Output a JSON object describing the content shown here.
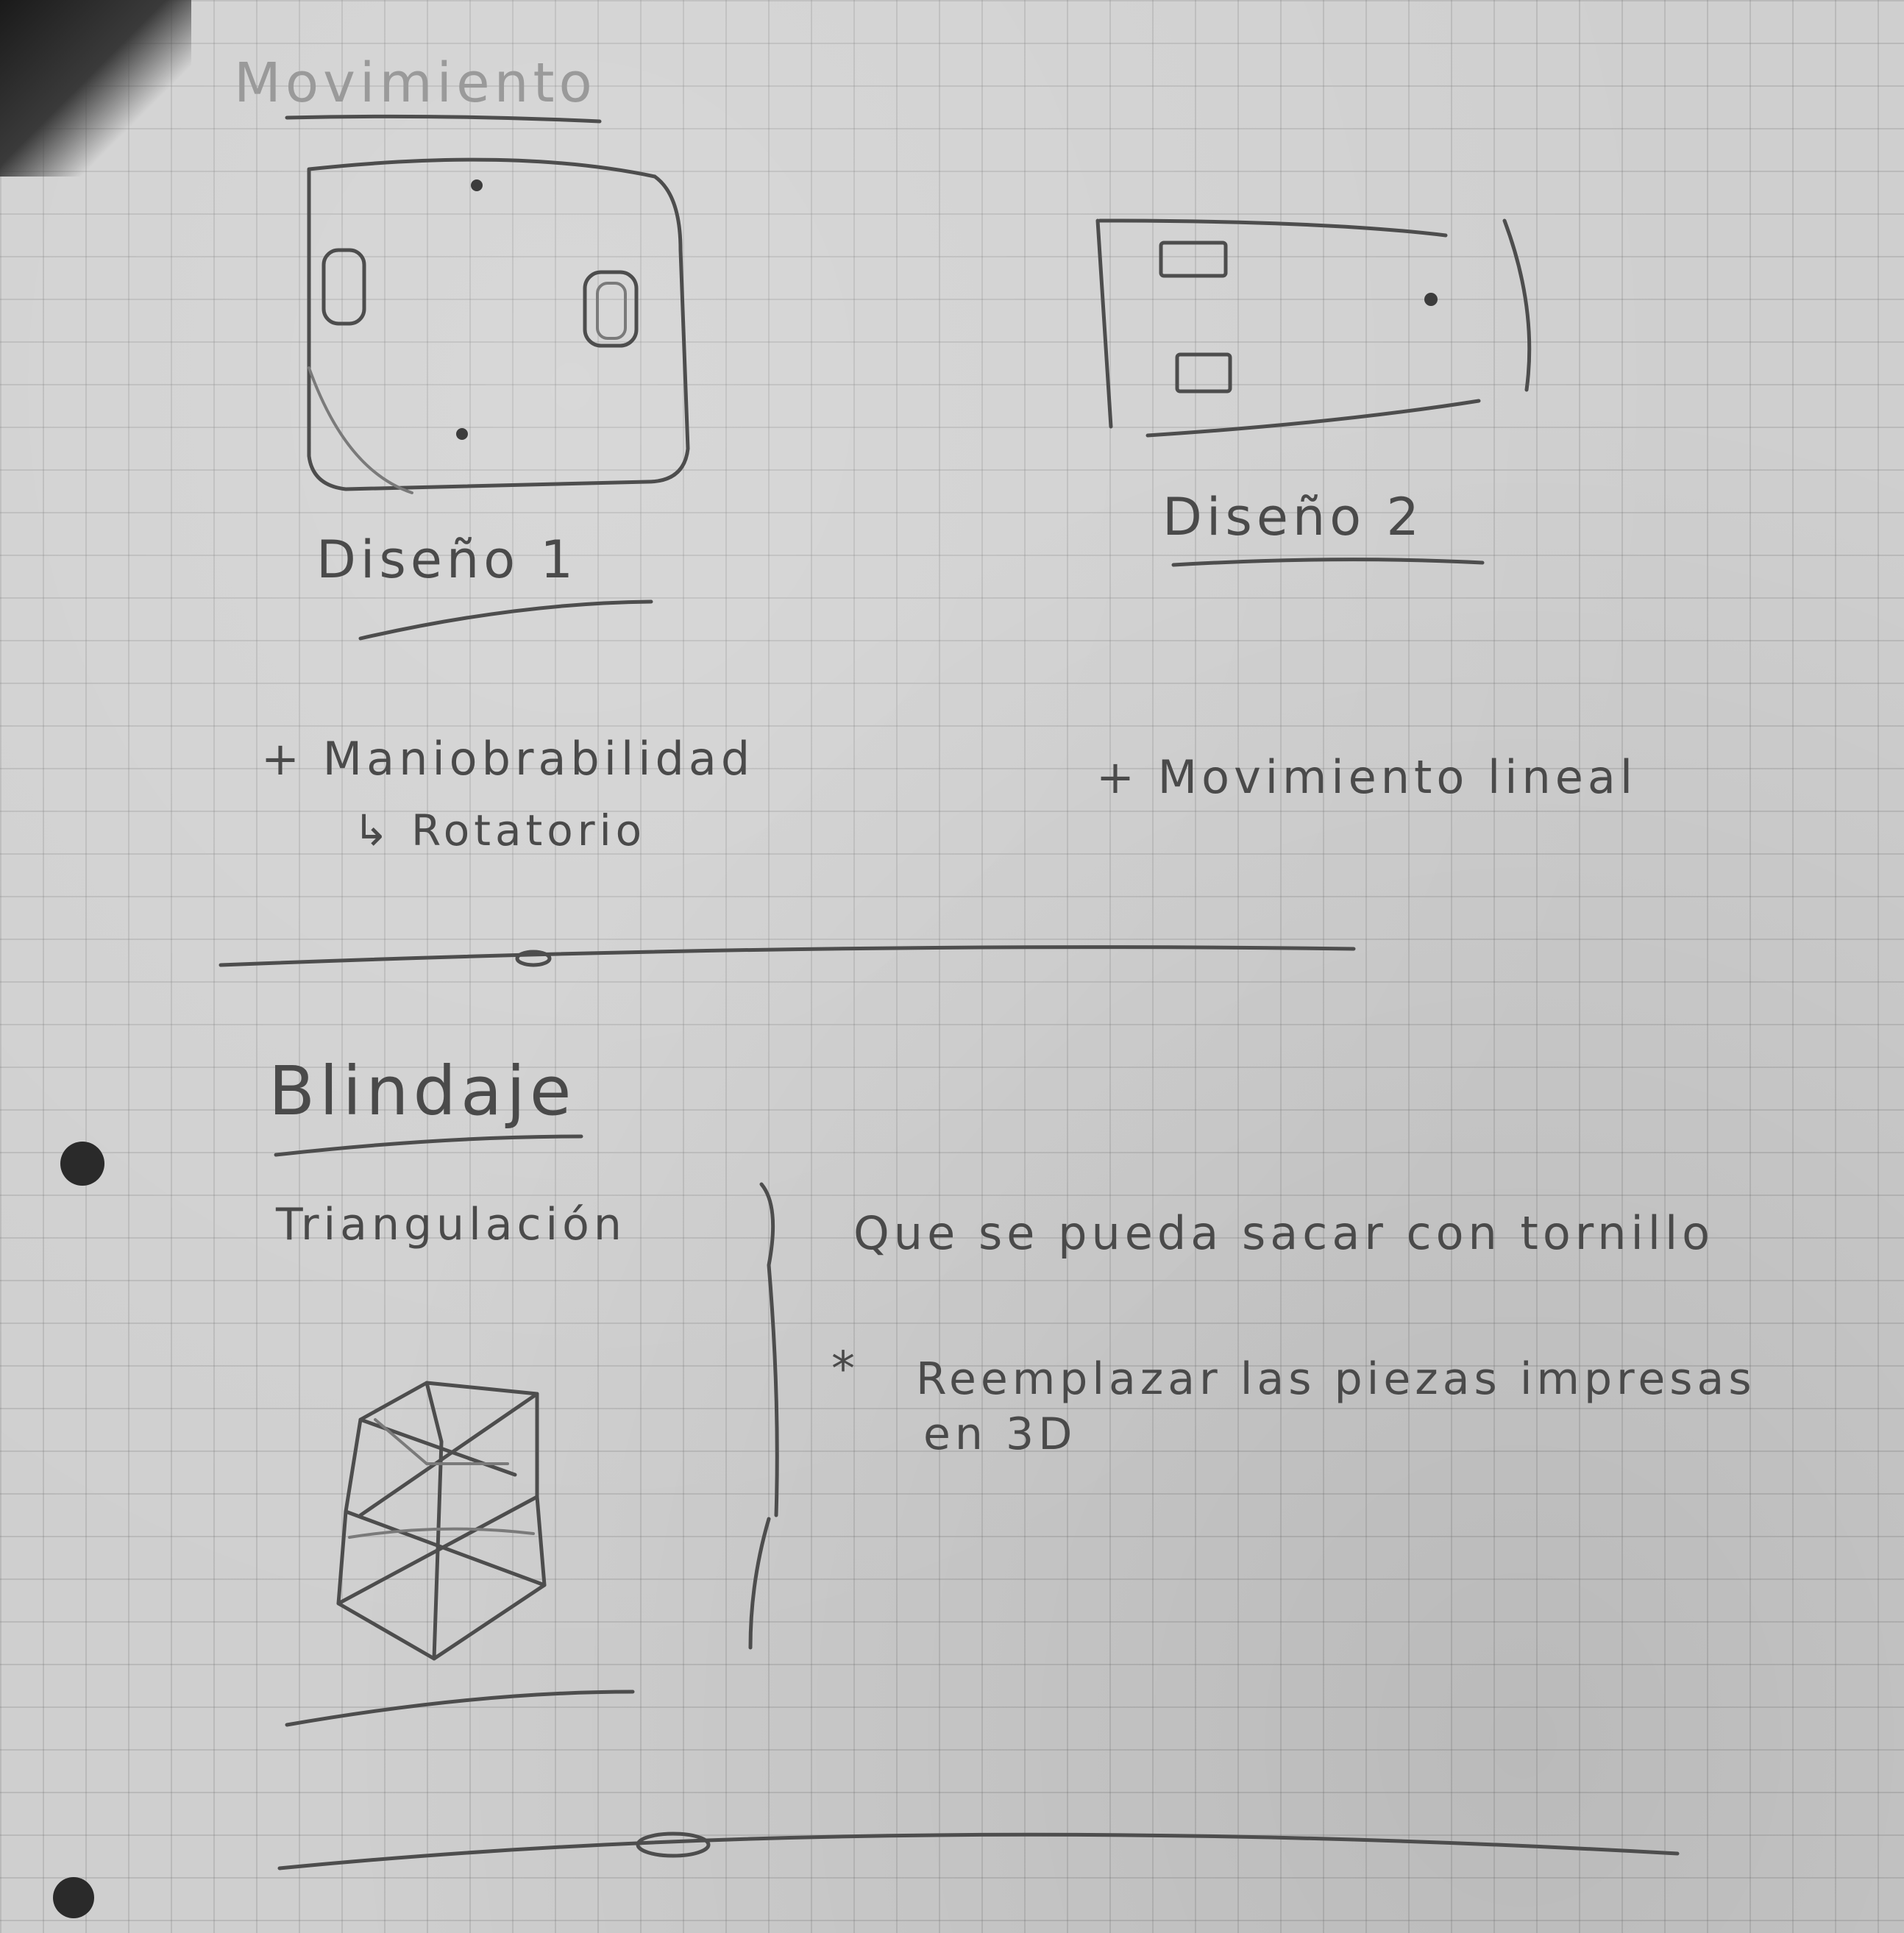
{
  "page": {
    "title": "Movimiento",
    "designs": [
      {
        "label": "Diseño 1",
        "note": "+ Maniobrabilidad",
        "sub_note": "↳ Rotatorio"
      },
      {
        "label": "Diseño 2",
        "note": "+ Movimiento lineal"
      }
    ],
    "section2": {
      "title": "Blindaje",
      "triangulation_label": "Triangulación",
      "line1": "Que se pueda sacar con tornillo",
      "bullet": "*",
      "line2": "Reemplazar las piezas impresas",
      "line3": "en 3D"
    }
  },
  "colors": {
    "paper": "#cfcfcf",
    "grid": "#8a8a8a",
    "pencil": "#4d4d4d"
  }
}
